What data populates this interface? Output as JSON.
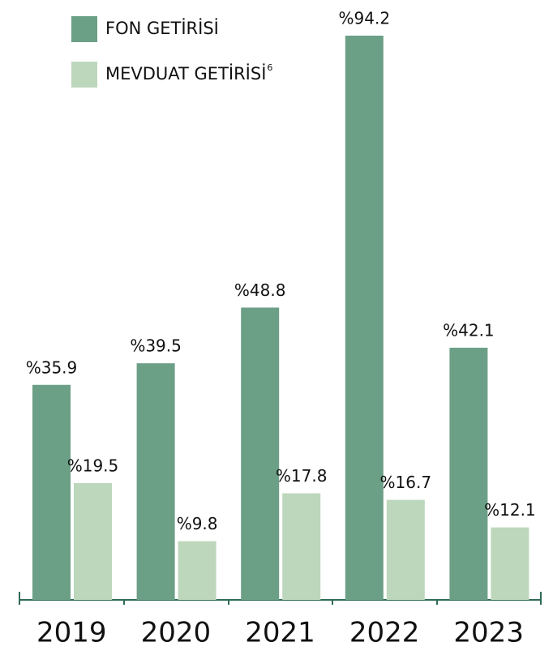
{
  "chart_data": {
    "type": "bar",
    "categories": [
      "2019",
      "2020",
      "2021",
      "2022",
      "2023"
    ],
    "series": [
      {
        "name": "FON GETİRİSİ",
        "color": "#6b9f86",
        "values": [
          35.9,
          39.5,
          48.8,
          94.2,
          42.1
        ],
        "value_labels": [
          "%35.9",
          "%39.5",
          "%48.8",
          "%94.2",
          "%42.1"
        ]
      },
      {
        "name": "MEVDUAT GETİRİSİ",
        "footnote": "6",
        "color": "#bdd7bc",
        "values": [
          19.5,
          9.8,
          17.8,
          16.7,
          12.1
        ],
        "value_labels": [
          "%19.5",
          "%9.8",
          "%17.8",
          "%16.7",
          "%12.1"
        ]
      }
    ],
    "ylim": [
      0,
      94.2
    ],
    "legend": "top-left"
  }
}
